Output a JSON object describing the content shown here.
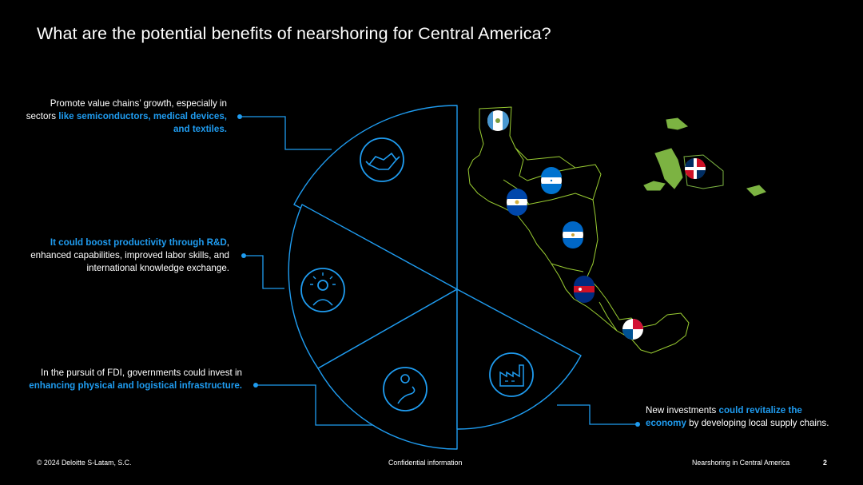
{
  "title": "What are the potential benefits of nearshoring for Central America?",
  "callouts": {
    "value_chains": {
      "pre": "Promote value chains’ growth, especially in sectors ",
      "highlight": "like semiconductors, medical devices, and textiles."
    },
    "productivity": {
      "highlight": "It could boost productivity through R&D",
      "post": ", enhanced capabilities, improved labor skills, and international knowledge exchange."
    },
    "infrastructure": {
      "pre": "In the pursuit of FDI, governments could invest in ",
      "highlight": "enhancing physical and logistical infrastructure."
    },
    "investments": {
      "pre": "New investments ",
      "highlight": "could revitalize the economy",
      "post": " by developing local supply chains."
    }
  },
  "icons": {
    "segment_1": "handshake-icon",
    "segment_2": "lightbulb-person-icon",
    "segment_3": "road-pin-icon",
    "segment_4": "factory-icon"
  },
  "flags": [
    "guatemala",
    "honduras",
    "el-salvador",
    "nicaragua",
    "costa-rica",
    "panama",
    "dominican-republic"
  ],
  "colors": {
    "background": "#000000",
    "accent_blue": "#1f9cf0",
    "map_outline": "#9acd32",
    "island_green": "#7cb342"
  },
  "footer": {
    "copyright": "© 2024 Deloitte S-Latam, S.C.",
    "confidential": "Confidential information",
    "section": "Nearshoring in Central America",
    "page": "2"
  }
}
